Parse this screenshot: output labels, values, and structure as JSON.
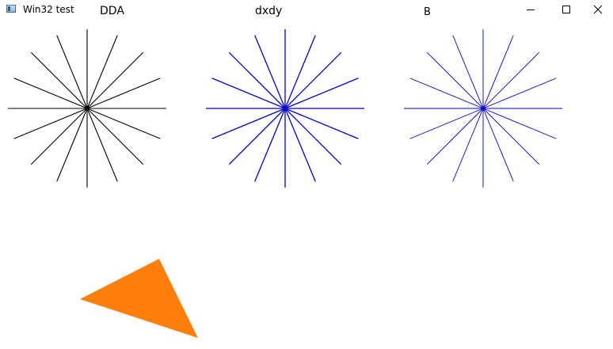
{
  "window": {
    "title": "Win32 test",
    "controls": {
      "minimize_icon": "minimize-icon",
      "maximize_icon": "maximize-icon",
      "close_icon": "close-icon"
    }
  },
  "labels": {
    "dda": "DDA",
    "dxdy": "dxdy",
    "b": "B"
  },
  "colors": {
    "dda_lines": "#000000",
    "dxdy_lines": "#0000cc",
    "b_lines": "#0000cc",
    "triangle_fill": "#ff7f0e"
  }
}
